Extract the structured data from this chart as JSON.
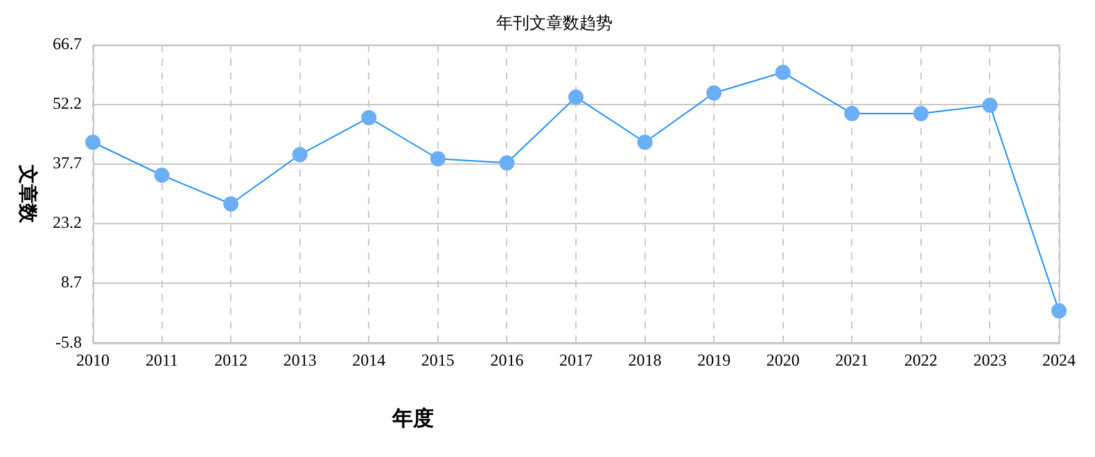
{
  "chart_data": {
    "type": "line",
    "title": "年刊文章数趋势",
    "xlabel": "年度",
    "ylabel": "文章数",
    "categories": [
      "2010",
      "2011",
      "2012",
      "2013",
      "2014",
      "2015",
      "2016",
      "2017",
      "2018",
      "2019",
      "2020",
      "2021",
      "2022",
      "2023",
      "2024"
    ],
    "series": [
      {
        "color": "#1e90ff",
        "values": [
          43,
          35,
          28,
          40,
          49,
          39,
          38,
          54,
          43,
          55,
          60,
          50,
          50,
          52,
          2
        ]
      }
    ],
    "ylim": [
      -5.8,
      66.7
    ],
    "yticks": [
      -5.8,
      8.7,
      23.2,
      37.7,
      52.2,
      66.7
    ],
    "grid": true,
    "marker": "circle",
    "line_style": "solid",
    "legend": false
  }
}
